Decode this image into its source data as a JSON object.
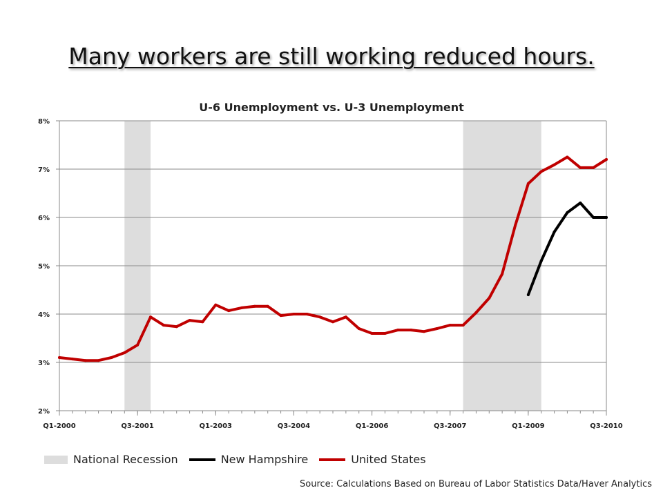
{
  "slide_title": "Many workers are still working reduced hours.",
  "source": "Source: Calculations Based on Bureau of Labor Statistics Data/Haver Analytics",
  "chart_data": {
    "type": "line",
    "title": "U-6 Unemployment vs. U-3 Unemployment",
    "xlabel": "",
    "ylabel": "",
    "ylim": [
      2,
      8
    ],
    "yticks": [
      2,
      3,
      4,
      5,
      6,
      7,
      8
    ],
    "ytick_labels": [
      "2%",
      "3%",
      "4%",
      "5%",
      "6%",
      "7%",
      "8%"
    ],
    "x": [
      "Q1-2000",
      "Q2-2000",
      "Q3-2000",
      "Q4-2000",
      "Q1-2001",
      "Q2-2001",
      "Q3-2001",
      "Q4-2001",
      "Q1-2002",
      "Q2-2002",
      "Q3-2002",
      "Q4-2002",
      "Q1-2003",
      "Q2-2003",
      "Q3-2003",
      "Q4-2003",
      "Q1-2004",
      "Q2-2004",
      "Q3-2004",
      "Q4-2004",
      "Q1-2005",
      "Q2-2005",
      "Q3-2005",
      "Q4-2005",
      "Q1-2006",
      "Q2-2006",
      "Q3-2006",
      "Q4-2006",
      "Q1-2007",
      "Q2-2007",
      "Q3-2007",
      "Q4-2007",
      "Q1-2008",
      "Q2-2008",
      "Q3-2008",
      "Q4-2008",
      "Q1-2009",
      "Q2-2009",
      "Q3-2009",
      "Q4-2009",
      "Q1-2010",
      "Q2-2010",
      "Q3-2010"
    ],
    "xtick_labels": [
      "Q1-2000",
      "Q3-2001",
      "Q1-2003",
      "Q3-2004",
      "Q1-2006",
      "Q3-2007",
      "Q1-2009",
      "Q3-2010"
    ],
    "recessions": [
      [
        "Q2-2001",
        "Q4-2001"
      ],
      [
        "Q4-2007",
        "Q2-2009"
      ]
    ],
    "grid": true,
    "legend_position": "bottom",
    "series": [
      {
        "name": "New Hampshire",
        "color": "#000000",
        "values": [
          null,
          null,
          null,
          null,
          null,
          null,
          null,
          null,
          null,
          null,
          null,
          null,
          null,
          null,
          null,
          null,
          null,
          null,
          null,
          null,
          null,
          null,
          null,
          null,
          null,
          null,
          null,
          null,
          null,
          null,
          null,
          null,
          null,
          null,
          null,
          null,
          4.4,
          5.1,
          5.7,
          6.1,
          6.3,
          6.0,
          6.0
        ]
      },
      {
        "name": "United States",
        "color": "#c00000",
        "values": [
          3.1,
          3.07,
          3.04,
          3.04,
          3.1,
          3.2,
          3.36,
          3.94,
          3.77,
          3.74,
          3.87,
          3.84,
          4.19,
          4.07,
          4.13,
          4.16,
          4.16,
          3.97,
          4.0,
          4.0,
          3.94,
          3.84,
          3.94,
          3.7,
          3.6,
          3.6,
          3.67,
          3.67,
          3.64,
          3.7,
          3.77,
          3.77,
          4.03,
          4.33,
          4.83,
          5.83,
          6.7,
          6.95,
          7.09,
          7.25,
          7.03,
          7.03,
          7.2
        ]
      }
    ]
  },
  "legend": {
    "recession_label": "National Recession",
    "recession_color": "#dddddd",
    "nh_label": "New Hampshire",
    "us_label": "United States"
  }
}
